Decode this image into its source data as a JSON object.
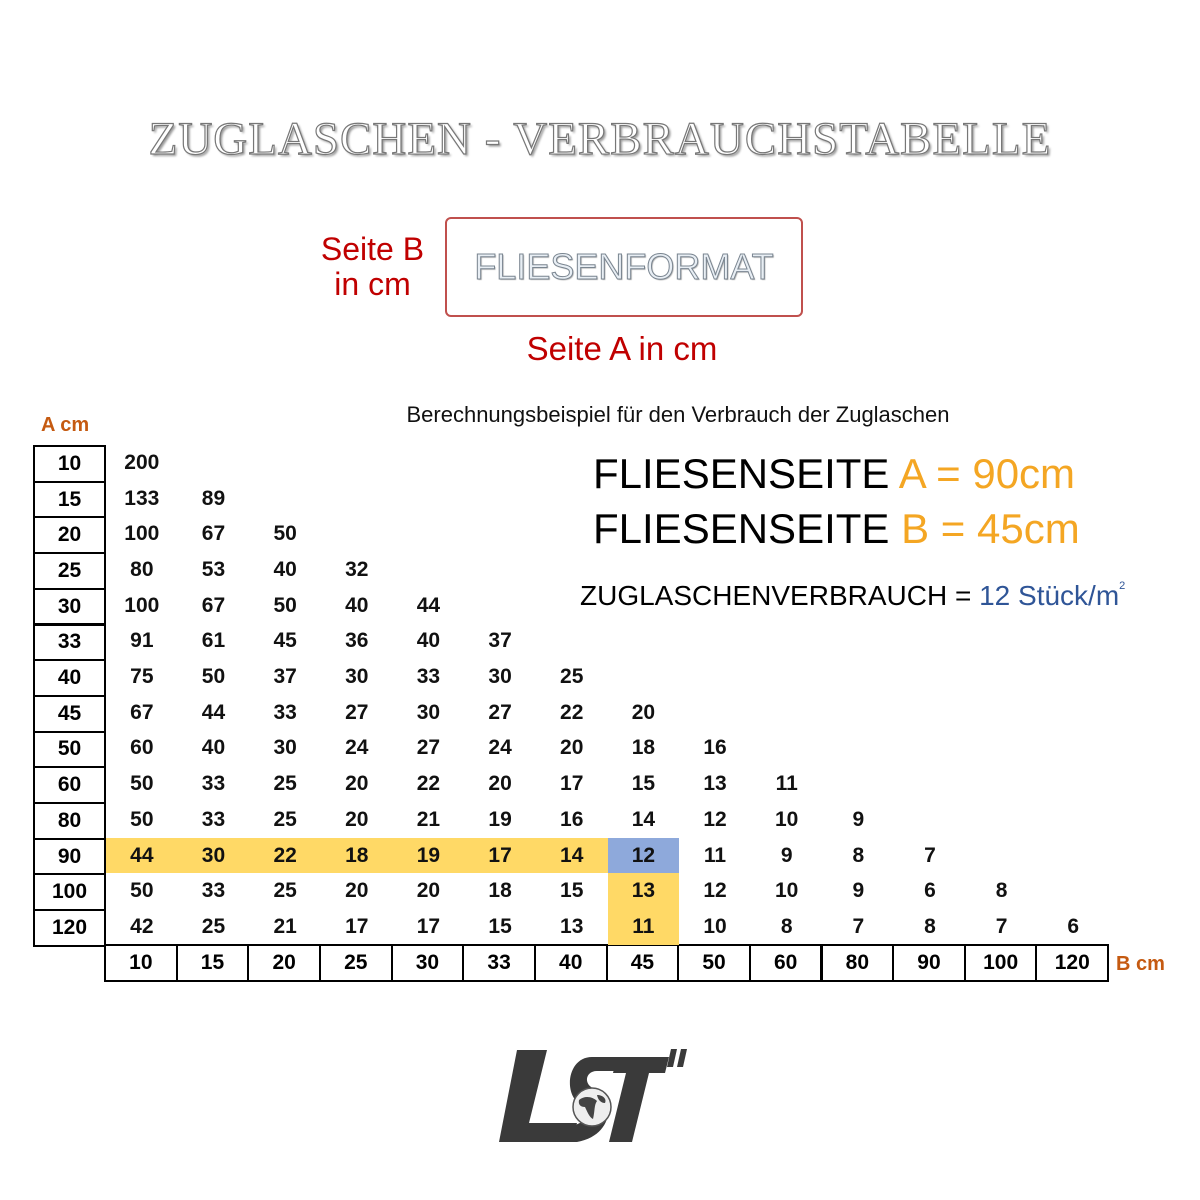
{
  "title": "ZUGLASCHEN - VERBRAUCHSTABELLE",
  "legend": {
    "side_b": [
      "Seite B",
      "in cm"
    ],
    "box_label": "FLIESENFORMAT",
    "side_a": "Seite A in cm"
  },
  "example": {
    "heading": "Berechnungsbeispiel für den Verbrauch der Zuglaschen",
    "line_a": {
      "prefix": "FLIESENSEITE ",
      "value": "A = 90cm"
    },
    "line_b": {
      "prefix": "FLIESENSEITE ",
      "value": "B = 45cm"
    },
    "consumption": {
      "prefix": "ZUGLASCHENVERBRAUCH = ",
      "value": "12 Stück/m",
      "sup": "2"
    },
    "accent_orange": "#f4a623",
    "accent_blue": "#2f5597"
  },
  "table": {
    "row_axis_label": "A cm",
    "col_axis_label": "B cm",
    "row_headers": [
      "10",
      "15",
      "20",
      "25",
      "30",
      "33",
      "40",
      "45",
      "50",
      "60",
      "80",
      "90",
      "100",
      "120"
    ],
    "col_headers": [
      "10",
      "15",
      "20",
      "25",
      "30",
      "33",
      "40",
      "45",
      "50",
      "60",
      "80",
      "90",
      "100",
      "120"
    ],
    "rows": [
      [
        "200"
      ],
      [
        "133",
        "89"
      ],
      [
        "100",
        "67",
        "50"
      ],
      [
        "80",
        "53",
        "40",
        "32"
      ],
      [
        "100",
        "67",
        "50",
        "40",
        "44"
      ],
      [
        "91",
        "61",
        "45",
        "36",
        "40",
        "37"
      ],
      [
        "75",
        "50",
        "37",
        "30",
        "33",
        "30",
        "25"
      ],
      [
        "67",
        "44",
        "33",
        "27",
        "30",
        "27",
        "22",
        "20"
      ],
      [
        "60",
        "40",
        "30",
        "24",
        "27",
        "24",
        "20",
        "18",
        "16"
      ],
      [
        "50",
        "33",
        "25",
        "20",
        "22",
        "20",
        "17",
        "15",
        "13",
        "11"
      ],
      [
        "50",
        "33",
        "25",
        "20",
        "21",
        "19",
        "16",
        "14",
        "12",
        "10",
        "9"
      ],
      [
        "44",
        "30",
        "22",
        "18",
        "19",
        "17",
        "14",
        "12",
        "11",
        "9",
        "8",
        "7"
      ],
      [
        "50",
        "33",
        "25",
        "20",
        "20",
        "18",
        "15",
        "13",
        "12",
        "10",
        "9",
        "6",
        "8"
      ],
      [
        "42",
        "25",
        "21",
        "17",
        "17",
        "15",
        "13",
        "11",
        "10",
        "8",
        "7",
        "8",
        "7",
        "6"
      ]
    ],
    "highlight": {
      "row": "90",
      "col": "45",
      "path_color": "#ffd966",
      "result_color": "#8ea9db"
    }
  },
  "logo": {
    "text": "LST"
  }
}
